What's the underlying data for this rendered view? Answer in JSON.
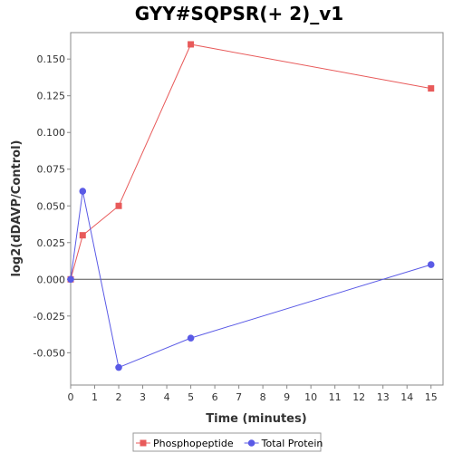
{
  "chart_data": {
    "type": "line",
    "title": "GYY#SQPSR(+ 2)_v1",
    "xlabel": "Time (minutes)",
    "ylabel": "log2(dDAVP/Control)",
    "xlim": [
      0,
      15.5
    ],
    "ylim": [
      -0.072,
      0.168
    ],
    "xticks": [
      0,
      1,
      2,
      3,
      4,
      5,
      6,
      7,
      8,
      9,
      10,
      11,
      12,
      13,
      14,
      15
    ],
    "yticks": [
      -0.05,
      -0.025,
      0.0,
      0.025,
      0.05,
      0.075,
      0.1,
      0.125,
      0.15
    ],
    "ytick_labels": [
      "-0.050",
      "-0.025",
      "0.000",
      "0.025",
      "0.050",
      "0.075",
      "0.100",
      "0.125",
      "0.150"
    ],
    "zero_line": true,
    "grid": false,
    "legend_position": "bottom",
    "series": [
      {
        "name": "Phosphopeptide",
        "color": "#e85a5a",
        "marker": "square",
        "x": [
          0,
          0.5,
          2,
          5,
          15
        ],
        "y": [
          0.0,
          0.03,
          0.05,
          0.16,
          0.13
        ]
      },
      {
        "name": "Total Protein",
        "color": "#5a5ae6",
        "marker": "circle",
        "x": [
          0,
          0.5,
          2,
          5,
          15
        ],
        "y": [
          0.0,
          0.06,
          -0.06,
          -0.04,
          0.01
        ]
      }
    ]
  }
}
